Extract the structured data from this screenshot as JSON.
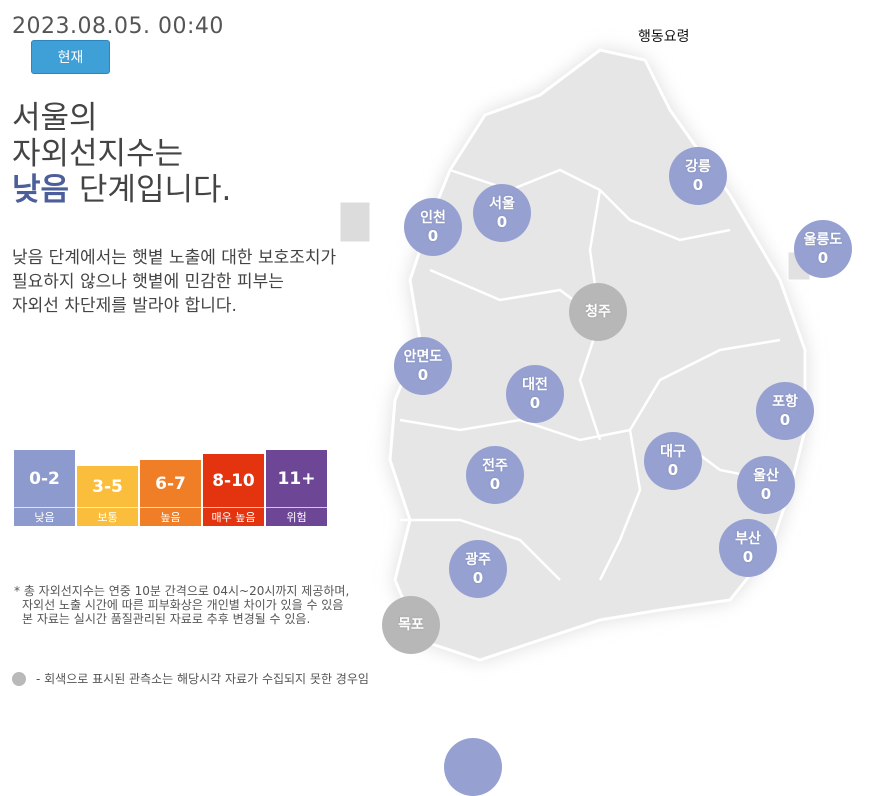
{
  "header": {
    "timestamp": "2023.08.05. 00:40",
    "now_button": "현재",
    "guide_link": "행동요령"
  },
  "headline": {
    "line1": "서울의",
    "line2": "자외선지수는",
    "level": "낮음",
    "line3_suffix": "단계입니다."
  },
  "description": {
    "line1": "낮음 단계에서는 햇볕 노출에 대한 보호조치가",
    "line2": "필요하지 않으나 햇볕에 민감한 피부는",
    "line3": "자외선 차단제를 발라야 합니다."
  },
  "legend": [
    {
      "range": "0-2",
      "label": "낮음",
      "color": "#8d9acd"
    },
    {
      "range": "3-5",
      "label": "보통",
      "color": "#fbbd3c"
    },
    {
      "range": "6-7",
      "label": "높음",
      "color": "#f07e26"
    },
    {
      "range": "8-10",
      "label": "매우 높음",
      "color": "#e3340f"
    },
    {
      "range": "11+",
      "label": "위험",
      "color": "#6d4796"
    }
  ],
  "notes": {
    "line1": "* 총 자외선지수는 연중 10분 간격으로 04시~20시까지 제공하며,",
    "line2": "자외선 노출 시간에 따른 피부화상은 개인별 차이가 있을 수 있음",
    "line3": "본 자료는 실시간 품질관리된 자료로 추후 변경될 수 있음.",
    "gray": "- 회색으로 표시된 관측소는 해당시각 자료가 수집되지 못한 경우임"
  },
  "stations": [
    {
      "name": "강릉",
      "value": "0",
      "status": "active"
    },
    {
      "name": "서울",
      "value": "0",
      "status": "active"
    },
    {
      "name": "인천",
      "value": "0",
      "status": "active"
    },
    {
      "name": "울릉도",
      "value": "0",
      "status": "active"
    },
    {
      "name": "청주",
      "value": "",
      "status": "no-data"
    },
    {
      "name": "안면도",
      "value": "0",
      "status": "active"
    },
    {
      "name": "대전",
      "value": "0",
      "status": "active"
    },
    {
      "name": "포항",
      "value": "0",
      "status": "active"
    },
    {
      "name": "대구",
      "value": "0",
      "status": "active"
    },
    {
      "name": "전주",
      "value": "0",
      "status": "active"
    },
    {
      "name": "울산",
      "value": "0",
      "status": "active"
    },
    {
      "name": "부산",
      "value": "0",
      "status": "active"
    },
    {
      "name": "광주",
      "value": "0",
      "status": "active"
    },
    {
      "name": "목포",
      "value": "",
      "status": "no-data"
    }
  ]
}
